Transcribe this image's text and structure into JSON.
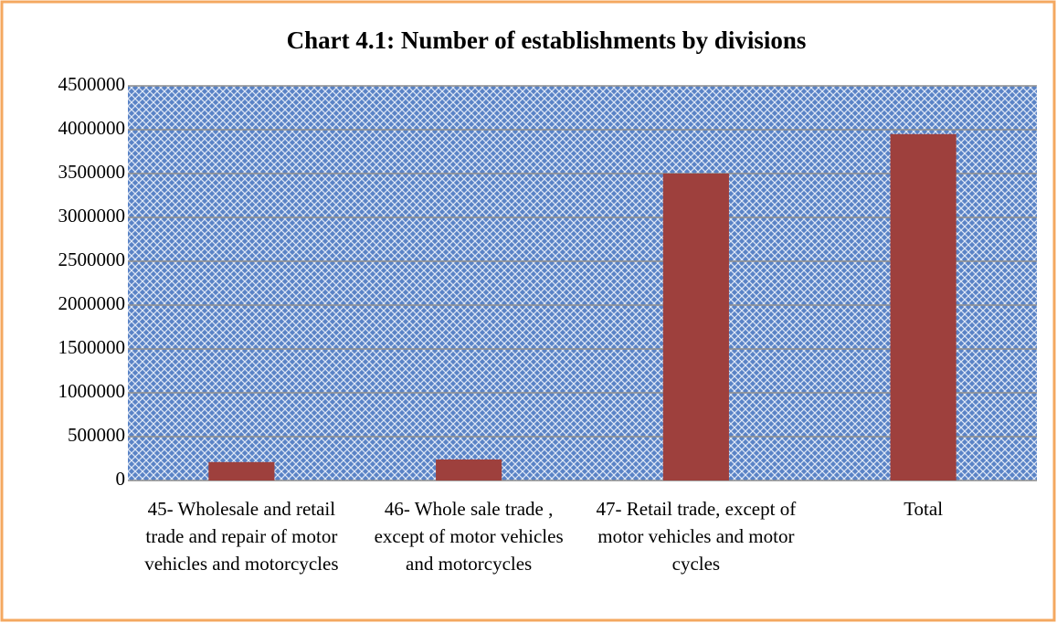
{
  "chart_data": {
    "type": "bar",
    "title": "Chart 4.1: Number of establishments by divisions",
    "categories": [
      "45- Wholesale and retail trade and repair of motor vehicles and motorcycles",
      "46- Whole sale trade , except of motor vehicles and motorcycles",
      "47- Retail trade, except of motor vehicles and motor cycles",
      "Total"
    ],
    "values": [
      210000,
      240000,
      3500000,
      3950000
    ],
    "color": "#9e403d",
    "ylim": [
      0,
      4500000
    ],
    "yticks": [
      0,
      500000,
      1000000,
      1500000,
      2000000,
      2500000,
      3000000,
      3500000,
      4000000,
      4500000
    ],
    "grid": true
  }
}
